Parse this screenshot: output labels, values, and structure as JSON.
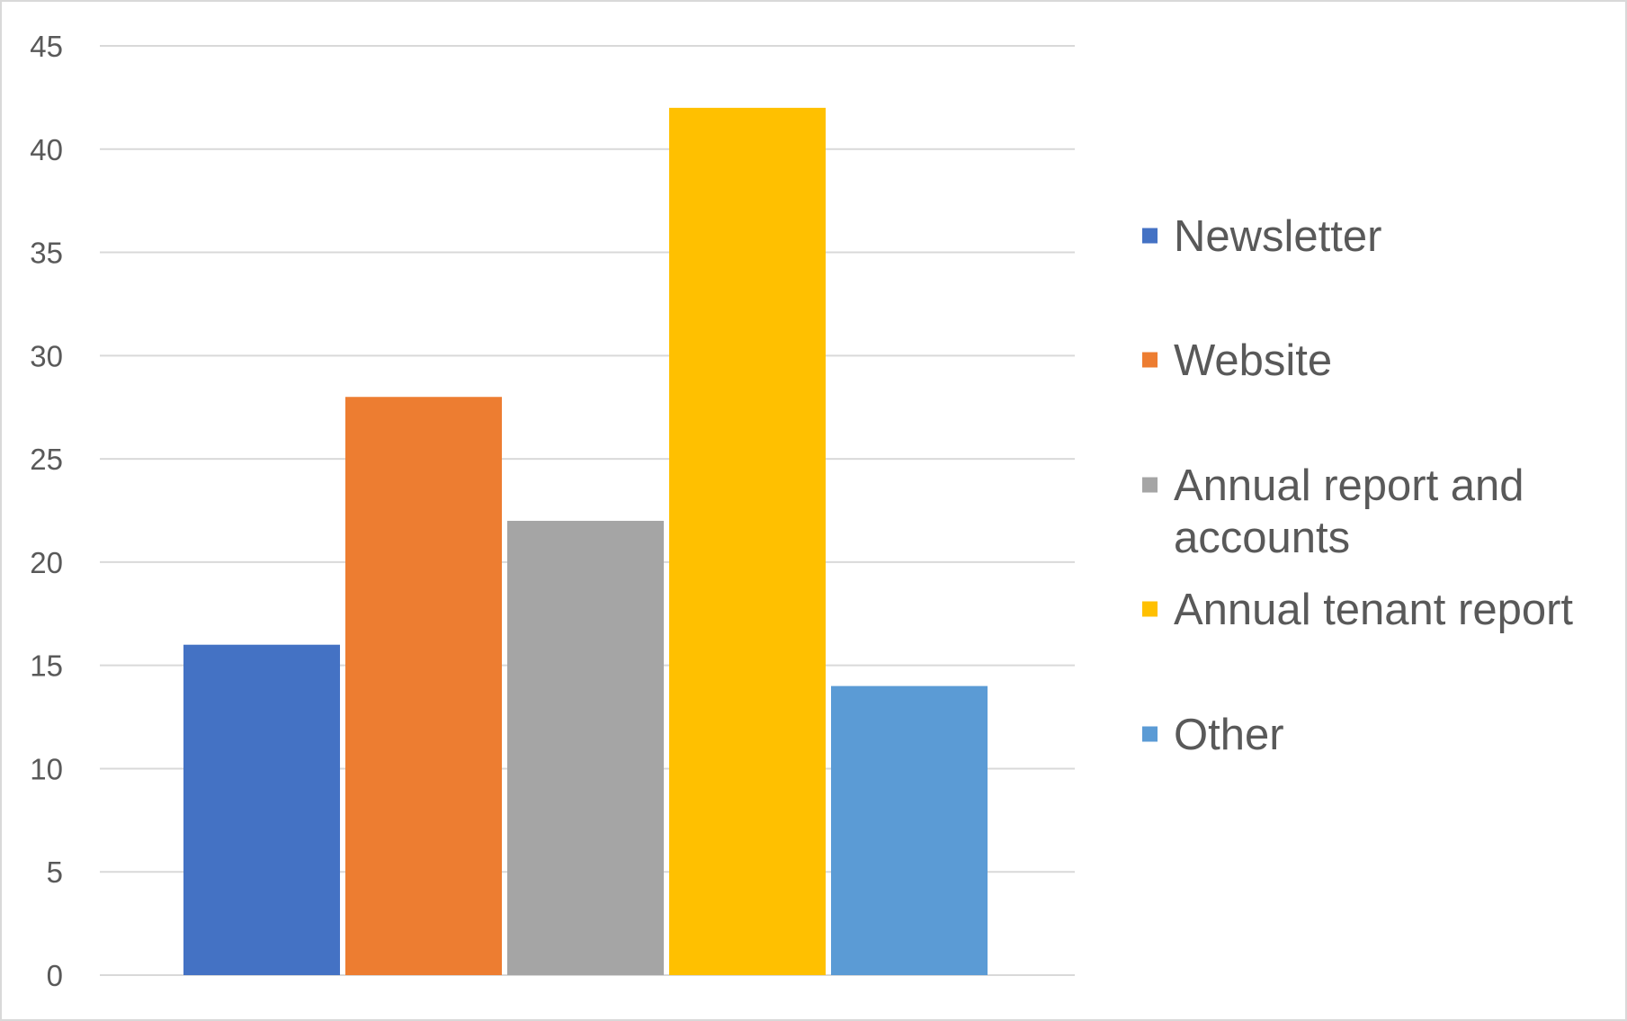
{
  "chart_data": {
    "type": "bar",
    "title": "",
    "xlabel": "",
    "ylabel": "",
    "ylim": [
      0,
      45
    ],
    "y_ticks": [
      0,
      5,
      10,
      15,
      20,
      25,
      30,
      35,
      40,
      45
    ],
    "grid": true,
    "legend_position": "right",
    "series": [
      {
        "name": "Newsletter",
        "value": 16,
        "color": "#4472C4"
      },
      {
        "name": "Website",
        "value": 28,
        "color": "#ED7D31"
      },
      {
        "name": "Annual report and accounts",
        "value": 22,
        "color": "#A5A5A5"
      },
      {
        "name": "Annual tenant report",
        "value": 42,
        "color": "#FFC000"
      },
      {
        "name": "Other",
        "value": 14,
        "color": "#5B9BD5"
      }
    ]
  }
}
